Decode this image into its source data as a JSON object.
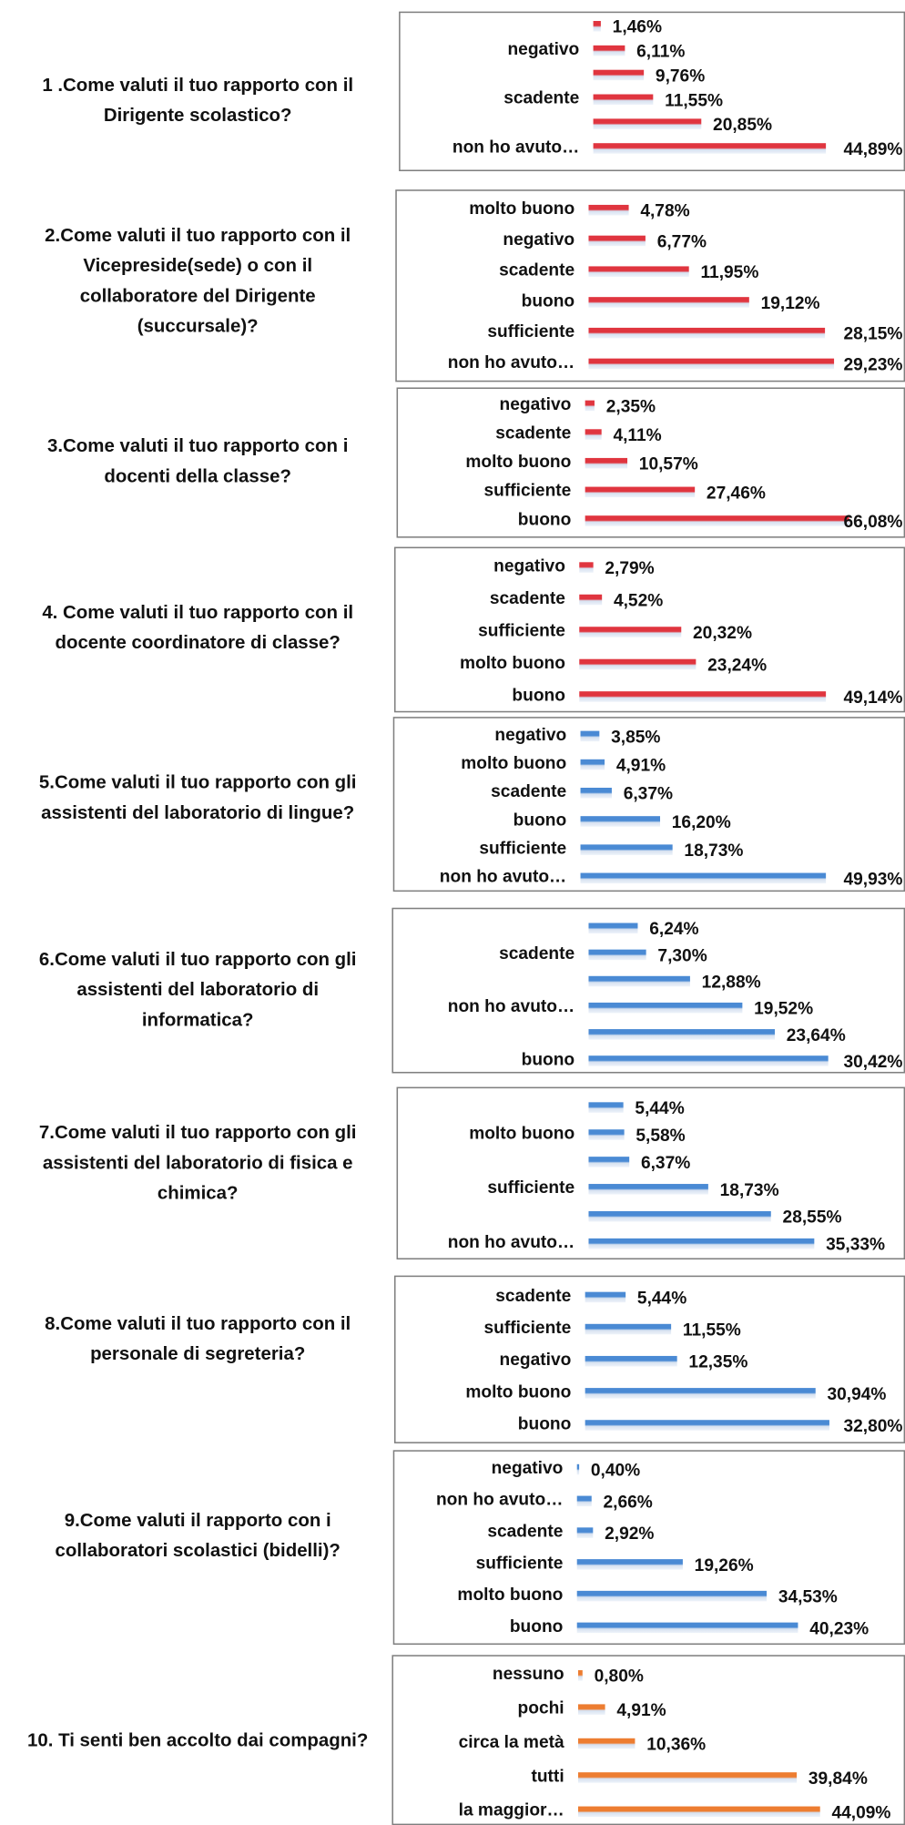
{
  "chart_data": [
    {
      "type": "bar",
      "title": [
        "1 .Come valuti il tuo rapporto con il",
        "Dirigente scolastico?"
      ],
      "categories": [
        null,
        "negativo",
        null,
        "scadente",
        null,
        "non ho avuto…"
      ],
      "values": [
        1.46,
        6.11,
        9.76,
        11.55,
        20.85,
        44.89
      ],
      "value_labels": [
        "1,46%",
        "6,11%",
        "9,76%",
        "11,55%",
        "20,85%",
        "44,89%"
      ],
      "color": "#e0353f"
    },
    {
      "type": "bar",
      "title": [
        "2.Come valuti il tuo rapporto con il",
        "Vicepreside(sede) o con il",
        "collaboratore del Dirigente",
        "(succursale)?"
      ],
      "categories": [
        "molto buono",
        "negativo",
        "scadente",
        "buono",
        "sufficiente",
        "non ho avuto…"
      ],
      "values": [
        4.78,
        6.77,
        11.95,
        19.12,
        28.15,
        29.23
      ],
      "value_labels": [
        "4,78%",
        "6,77%",
        "11,95%",
        "19,12%",
        "28,15%",
        "29,23%"
      ],
      "color": "#e0353f"
    },
    {
      "type": "bar",
      "title": [
        "3.Come valuti il tuo rapporto con i",
        "docenti della classe?"
      ],
      "categories": [
        "negativo",
        "scadente",
        "molto buono",
        "sufficiente",
        "buono"
      ],
      "values": [
        2.35,
        4.11,
        10.57,
        27.46,
        66.08
      ],
      "value_labels": [
        "2,35%",
        "4,11%",
        "10,57%",
        "27,46%",
        "66,08%"
      ],
      "color": "#e0353f"
    },
    {
      "type": "bar",
      "title": [
        "4. Come valuti il tuo rapporto con il",
        "docente coordinatore di classe?"
      ],
      "categories": [
        "negativo",
        "scadente",
        "sufficiente",
        "molto buono",
        "buono"
      ],
      "values": [
        2.79,
        4.52,
        20.32,
        23.24,
        49.14
      ],
      "value_labels": [
        "2,79%",
        "4,52%",
        "20,32%",
        "23,24%",
        "49,14%"
      ],
      "color": "#e0353f"
    },
    {
      "type": "bar",
      "title": [
        "5.Come valuti il tuo rapporto con gli",
        "assistenti del laboratorio di lingue?"
      ],
      "categories": [
        "negativo",
        "molto buono",
        "scadente",
        "buono",
        "sufficiente",
        "non ho avuto…"
      ],
      "values": [
        3.85,
        4.91,
        6.37,
        16.2,
        18.73,
        49.93
      ],
      "value_labels": [
        "3,85%",
        "4,91%",
        "6,37%",
        "16,20%",
        "18,73%",
        "49,93%"
      ],
      "color": "#4a8ad4"
    },
    {
      "type": "bar",
      "title": [
        "6.Come valuti il tuo rapporto con gli",
        "assistenti del laboratorio di",
        "informatica?"
      ],
      "categories": [
        null,
        "scadente",
        null,
        "non ho avuto…",
        null,
        "buono"
      ],
      "values": [
        6.24,
        7.3,
        12.88,
        19.52,
        23.64,
        30.42
      ],
      "value_labels": [
        "6,24%",
        "7,30%",
        "12,88%",
        "19,52%",
        "23,64%",
        "30,42%"
      ],
      "color": "#4a8ad4"
    },
    {
      "type": "bar",
      "title": [
        "7.Come valuti il tuo rapporto con gli",
        "assistenti del laboratorio di fisica e",
        "chimica?"
      ],
      "categories": [
        null,
        "molto buono",
        null,
        "sufficiente",
        null,
        "non ho avuto…"
      ],
      "values": [
        5.44,
        5.58,
        6.37,
        18.73,
        28.55,
        35.33
      ],
      "value_labels": [
        "5,44%",
        "5,58%",
        "6,37%",
        "18,73%",
        "28,55%",
        "35,33%"
      ],
      "color": "#4a8ad4"
    },
    {
      "type": "bar",
      "title": [
        "8.Come valuti il tuo rapporto con il",
        "personale di segreteria?"
      ],
      "categories": [
        "scadente",
        "sufficiente",
        "negativo",
        "molto buono",
        "buono"
      ],
      "values": [
        5.44,
        11.55,
        12.35,
        30.94,
        32.8
      ],
      "value_labels": [
        "5,44%",
        "11,55%",
        "12,35%",
        "30,94%",
        "32,80%"
      ],
      "color": "#4a8ad4"
    },
    {
      "type": "bar",
      "title": [
        "9.Come valuti il rapporto con i",
        "collaboratori scolastici (bidelli)?"
      ],
      "categories": [
        "negativo",
        "non ho avuto…",
        "scadente",
        "sufficiente",
        "molto buono",
        "buono"
      ],
      "values": [
        0.4,
        2.66,
        2.92,
        19.26,
        34.53,
        40.23
      ],
      "value_labels": [
        "0,40%",
        "2,66%",
        "2,92%",
        "19,26%",
        "34,53%",
        "40,23%"
      ],
      "color": "#4a8ad4"
    },
    {
      "type": "bar",
      "title": [
        "10. Ti senti ben accolto dai compagni?"
      ],
      "categories": [
        "nessuno",
        "pochi",
        "circa la metà",
        "tutti",
        "la maggior…"
      ],
      "values": [
        0.8,
        4.91,
        10.36,
        39.84,
        44.09
      ],
      "value_labels": [
        "0,80%",
        "4,91%",
        "10,36%",
        "39,84%",
        "44,09%"
      ],
      "color": "#ed7d31"
    }
  ]
}
